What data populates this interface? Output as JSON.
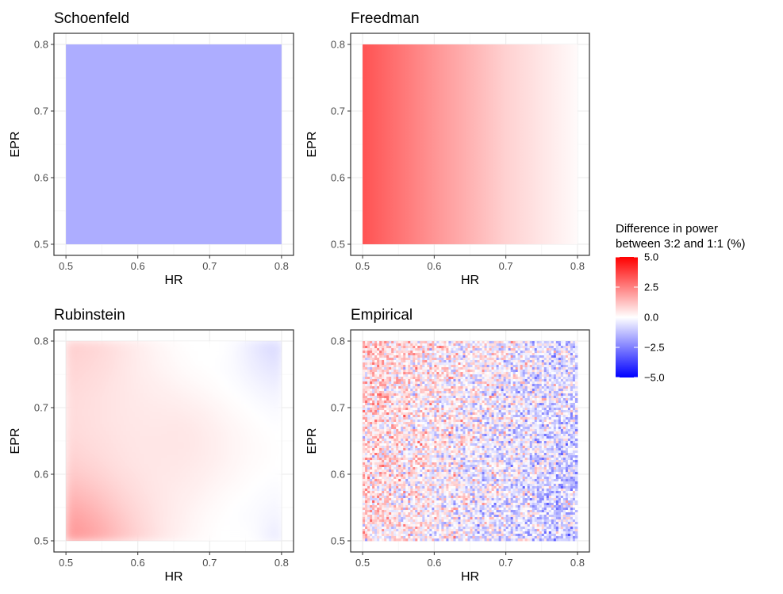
{
  "chart_data": {
    "type": "heatmap",
    "x_range": [
      0.5,
      0.8
    ],
    "y_range": [
      0.5,
      0.8
    ],
    "grid": true,
    "legend": {
      "title_line1": "Difference in power",
      "title_line2": "between 3:2 and 1:1 (%)",
      "placement": "right",
      "range": [
        -5.0,
        5.0
      ],
      "breaks": [
        {
          "value": 5.0,
          "label": "5.0"
        },
        {
          "value": 2.5,
          "label": "2.5"
        },
        {
          "value": 0.0,
          "label": "0.0"
        },
        {
          "value": -2.5,
          "label": "−2.5"
        },
        {
          "value": -5.0,
          "label": "−5.0"
        }
      ],
      "colors": {
        "low": "#0000FF",
        "mid": "#FFFFFF",
        "high": "#FF0000"
      }
    },
    "panels": [
      {
        "title": "Schoenfeld",
        "xlabel": "HR",
        "ylabel": "EPR",
        "xticks": [
          {
            "v": 0.5,
            "label": "0.5"
          },
          {
            "v": 0.6,
            "label": "0.6"
          },
          {
            "v": 0.7,
            "label": "0.7"
          },
          {
            "v": 0.8,
            "label": "0.8"
          }
        ],
        "yticks": [
          {
            "v": 0.5,
            "label": "0.5"
          },
          {
            "v": 0.6,
            "label": "0.6"
          },
          {
            "v": 0.7,
            "label": "0.7"
          },
          {
            "v": 0.8,
            "label": "0.8"
          }
        ],
        "values": [
          {
            "hr": 0.5,
            "epr": 0.5,
            "diff": -1.6
          },
          {
            "hr": 0.8,
            "epr": 0.5,
            "diff": -1.6
          },
          {
            "hr": 0.5,
            "epr": 0.8,
            "diff": -1.6
          },
          {
            "hr": 0.8,
            "epr": 0.8,
            "diff": -1.6
          }
        ]
      },
      {
        "title": "Freedman",
        "xlabel": "HR",
        "ylabel": "EPR",
        "xticks": [
          {
            "v": 0.5,
            "label": "0.5"
          },
          {
            "v": 0.6,
            "label": "0.6"
          },
          {
            "v": 0.7,
            "label": "0.7"
          },
          {
            "v": 0.8,
            "label": "0.8"
          }
        ],
        "yticks": [
          {
            "v": 0.5,
            "label": "0.5"
          },
          {
            "v": 0.6,
            "label": "0.6"
          },
          {
            "v": 0.7,
            "label": "0.7"
          },
          {
            "v": 0.8,
            "label": "0.8"
          }
        ],
        "values": [
          {
            "hr": 0.5,
            "epr": 0.5,
            "diff": 3.4
          },
          {
            "hr": 0.6,
            "epr": 0.5,
            "diff": 2.1
          },
          {
            "hr": 0.7,
            "epr": 0.5,
            "diff": 0.9
          },
          {
            "hr": 0.8,
            "epr": 0.5,
            "diff": 0.1
          },
          {
            "hr": 0.5,
            "epr": 0.8,
            "diff": 3.4
          },
          {
            "hr": 0.8,
            "epr": 0.8,
            "diff": 0.1
          }
        ]
      },
      {
        "title": "Rubinstein",
        "xlabel": "HR",
        "ylabel": "EPR",
        "xticks": [
          {
            "v": 0.5,
            "label": "0.5"
          },
          {
            "v": 0.6,
            "label": "0.6"
          },
          {
            "v": 0.7,
            "label": "0.7"
          },
          {
            "v": 0.8,
            "label": "0.8"
          }
        ],
        "yticks": [
          {
            "v": 0.5,
            "label": "0.5"
          },
          {
            "v": 0.6,
            "label": "0.6"
          },
          {
            "v": 0.7,
            "label": "0.7"
          },
          {
            "v": 0.8,
            "label": "0.8"
          }
        ],
        "values": [
          {
            "hr": 0.5,
            "epr": 0.5,
            "diff": 2.0
          },
          {
            "hr": 0.5,
            "epr": 0.8,
            "diff": 0.9
          },
          {
            "hr": 0.65,
            "epr": 0.65,
            "diff": 0.5
          },
          {
            "hr": 0.7,
            "epr": 0.8,
            "diff": 0.0
          },
          {
            "hr": 0.75,
            "epr": 0.5,
            "diff": 0.0
          },
          {
            "hr": 0.8,
            "epr": 0.5,
            "diff": -0.4
          },
          {
            "hr": 0.8,
            "epr": 0.8,
            "diff": -0.7
          }
        ]
      },
      {
        "title": "Empirical",
        "xlabel": "HR",
        "ylabel": "EPR",
        "xticks": [
          {
            "v": 0.5,
            "label": "0.5"
          },
          {
            "v": 0.6,
            "label": "0.6"
          },
          {
            "v": 0.7,
            "label": "0.7"
          },
          {
            "v": 0.8,
            "label": "0.8"
          }
        ],
        "yticks": [
          {
            "v": 0.5,
            "label": "0.5"
          },
          {
            "v": 0.6,
            "label": "0.6"
          },
          {
            "v": 0.7,
            "label": "0.7"
          },
          {
            "v": 0.8,
            "label": "0.8"
          }
        ],
        "values": [
          {
            "hr": 0.5,
            "epr": 0.5,
            "diff": 0.9
          },
          {
            "hr": 0.65,
            "epr": 0.65,
            "diff": 0.0
          },
          {
            "hr": 0.8,
            "epr": 0.8,
            "diff": -1.0
          }
        ],
        "noise_sd": 1.0
      }
    ]
  }
}
